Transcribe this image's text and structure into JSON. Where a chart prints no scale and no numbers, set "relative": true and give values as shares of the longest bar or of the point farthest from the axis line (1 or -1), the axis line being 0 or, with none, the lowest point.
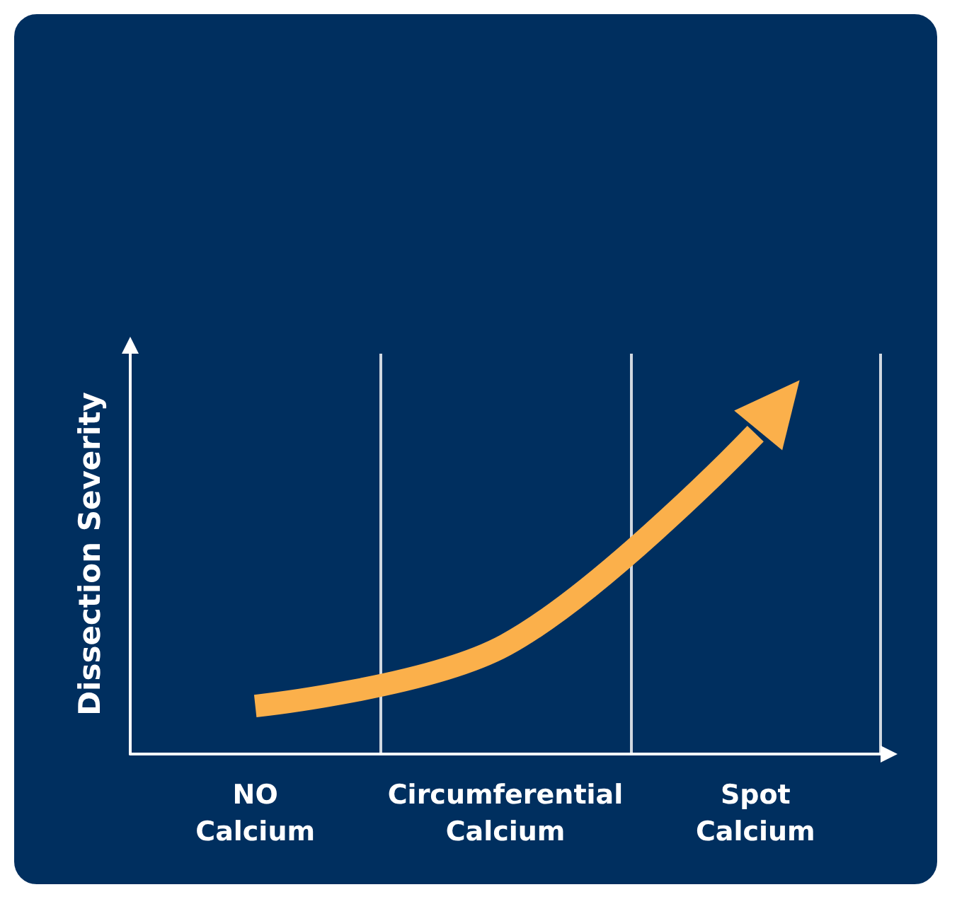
{
  "chart_data": {
    "type": "line",
    "ylabel": "Dissection Severity",
    "categories": [
      "NO\nCalcium",
      "Circumferential\nCalcium",
      "Spot\nCalcium"
    ],
    "relative": true,
    "grid": "x",
    "series": [
      {
        "color": "#fbb04b",
        "values": [
          0.15,
          0.34,
          1
        ]
      }
    ]
  }
}
